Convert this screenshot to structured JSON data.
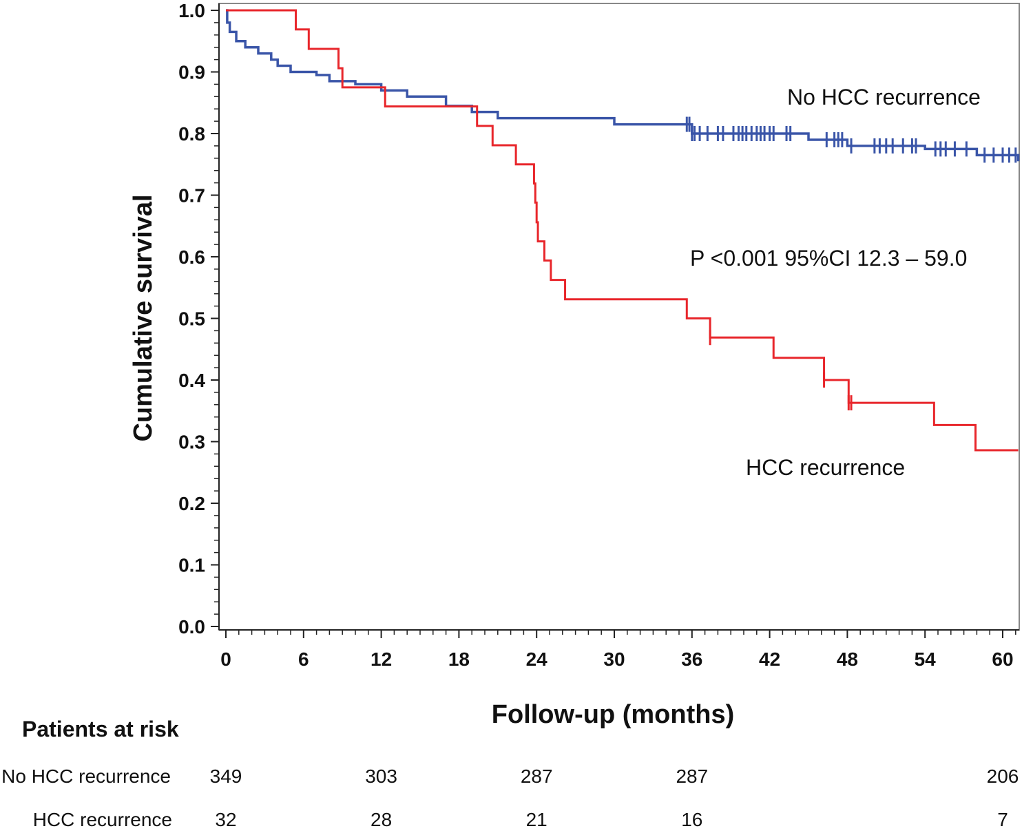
{
  "chart_data": {
    "type": "line",
    "subtype": "kaplan-meier",
    "title": "",
    "xlabel": "Follow-up (months)",
    "ylabel": "Cumulative survival",
    "xlim": [
      0,
      61.2
    ],
    "ylim": [
      0,
      1.0
    ],
    "x_ticks": [
      0,
      6,
      12,
      18,
      24,
      30,
      36,
      42,
      48,
      54,
      60
    ],
    "y_ticks": [
      "0.0",
      "0.1",
      "0.2",
      "0.3",
      "0.4",
      "0.5",
      "0.6",
      "0.7",
      "0.8",
      "0.9",
      "1.0"
    ],
    "grid": false,
    "annotation": "P <0.001 95%CI 12.3 – 59.0",
    "series": [
      {
        "name": "No HCC recurrence",
        "color": "#3a55a8",
        "points": [
          [
            0,
            1
          ],
          [
            0.1,
            0.98
          ],
          [
            0.3,
            0.965
          ],
          [
            0.8,
            0.95
          ],
          [
            1.5,
            0.94
          ],
          [
            2.5,
            0.93
          ],
          [
            3.5,
            0.92
          ],
          [
            4,
            0.91
          ],
          [
            5,
            0.9
          ],
          [
            7,
            0.895
          ],
          [
            8,
            0.885
          ],
          [
            10,
            0.88
          ],
          [
            12,
            0.87
          ],
          [
            14,
            0.86
          ],
          [
            17,
            0.845
          ],
          [
            19,
            0.835
          ],
          [
            21,
            0.825
          ],
          [
            27,
            0.825
          ],
          [
            30,
            0.815
          ],
          [
            36,
            0.8
          ],
          [
            42,
            0.8
          ],
          [
            45,
            0.79
          ],
          [
            48,
            0.78
          ],
          [
            54,
            0.775
          ],
          [
            58,
            0.765
          ],
          [
            61.2,
            0.755
          ]
        ],
        "censored": [
          35.6,
          35.8,
          36.0,
          36.2,
          36.6,
          37.2,
          38,
          38.4,
          39.2,
          39.6,
          39.9,
          40.2,
          40.6,
          41,
          41.3,
          41.6,
          42,
          42.3,
          43.3,
          43.6,
          46.4,
          47,
          47.3,
          47.6,
          48.3,
          50.1,
          50.5,
          51,
          51.5,
          52.3,
          53,
          53.3,
          54.8,
          55.2,
          55.6,
          56.3,
          57.2,
          58.6,
          59.3,
          60,
          60.5,
          61
        ]
      },
      {
        "name": "HCC recurrence",
        "color": "#e8262b",
        "points": [
          [
            0,
            1
          ],
          [
            5.4,
            0.969
          ],
          [
            6.4,
            0.9375
          ],
          [
            8.7,
            0.906
          ],
          [
            9.0,
            0.875
          ],
          [
            12.3,
            0.844
          ],
          [
            19.4,
            0.8125
          ],
          [
            20.6,
            0.781
          ],
          [
            22.4,
            0.75
          ],
          [
            23.8,
            0.719
          ],
          [
            23.9,
            0.688
          ],
          [
            24.0,
            0.656
          ],
          [
            24.1,
            0.625
          ],
          [
            24.6,
            0.594
          ],
          [
            25.1,
            0.5625
          ],
          [
            26.2,
            0.531
          ],
          [
            35.6,
            0.5
          ],
          [
            37.4,
            0.469
          ],
          [
            42.3,
            0.436
          ],
          [
            46.2,
            0.4
          ],
          [
            48.1,
            0.363
          ],
          [
            54.7,
            0.327
          ],
          [
            57.9,
            0.286
          ],
          [
            61.2,
            0.286
          ]
        ],
        "censored": [
          37.4,
          46.2,
          48.1,
          48.3
        ]
      }
    ],
    "risk_table": {
      "title": "Patients at risk",
      "times": [
        0,
        12,
        24,
        36,
        60
      ],
      "rows": [
        {
          "label": "No HCC recurrence",
          "values": [
            "349",
            "303",
            "287",
            "287",
            "206"
          ]
        },
        {
          "label": "HCC recurrence",
          "values": [
            "32",
            "28",
            "21",
            "16",
            "7"
          ]
        }
      ]
    }
  }
}
